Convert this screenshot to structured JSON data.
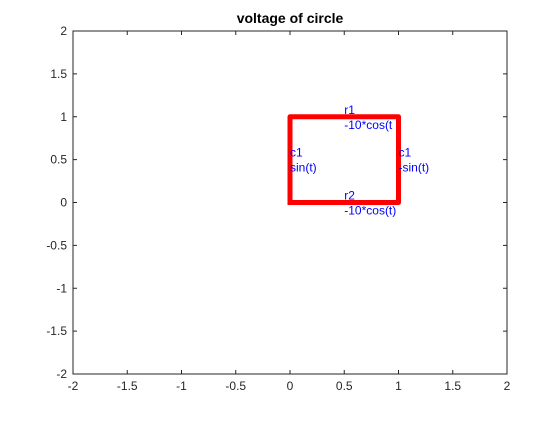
{
  "chart_data": {
    "type": "line",
    "title": "voltage of circle",
    "xlabel": "",
    "ylabel": "",
    "xlim": [
      -2,
      2
    ],
    "ylim": [
      -2,
      2
    ],
    "grid": false,
    "xticks": [
      "-2",
      "-1.5",
      "-1",
      "-0.5",
      "0",
      "0.5",
      "1",
      "1.5",
      "2"
    ],
    "yticks": [
      "-2",
      "-1.5",
      "-1",
      "-0.5",
      "0",
      "0.5",
      "1",
      "1.5",
      "2"
    ],
    "series": [
      {
        "color": "#ff0000",
        "x": [
          0,
          1,
          1,
          0,
          0
        ],
        "y": [
          0,
          0,
          1,
          1,
          0
        ]
      }
    ],
    "annotations": [
      {
        "x": 0.5,
        "y": 1.0,
        "lines": [
          "r1",
          "-10*cos(t"
        ],
        "color": "#0000ff"
      },
      {
        "x": 0.0,
        "y": 0.5,
        "lines": [
          "c1",
          "sin(t)"
        ],
        "color": "#0000ff"
      },
      {
        "x": 1.0,
        "y": 0.5,
        "lines": [
          "c1",
          "-sin(t)"
        ],
        "color": "#0000ff"
      },
      {
        "x": 0.5,
        "y": 0.0,
        "lines": [
          "r2",
          "-10*cos(t)"
        ],
        "color": "#0000ff"
      }
    ]
  }
}
